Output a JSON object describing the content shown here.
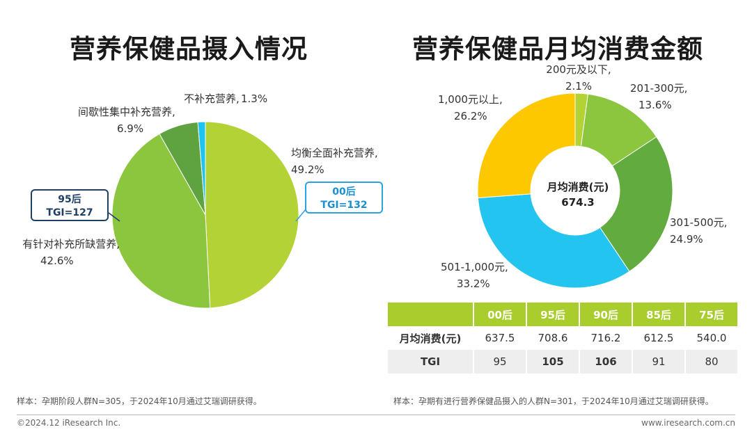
{
  "left": {
    "title": "营养保健品摄入情况",
    "labels": [
      {
        "name": "均衡全面补充营养,",
        "pct": "49.2%"
      },
      {
        "name": "有针对补充所缺营养,",
        "pct": "42.6%"
      },
      {
        "name": "间歇性集中补充营养,",
        "pct": "6.9%"
      },
      {
        "name": "不补充营养,",
        "pct": "1.3%"
      }
    ],
    "callout_95": {
      "line1": "95后",
      "line2": "TGI=127"
    },
    "callout_00": {
      "line1": "00后",
      "line2": "TGI=132"
    },
    "note": "样本：孕期阶段人群N=305，于2024年10月通过艾瑞调研获得。"
  },
  "right": {
    "title": "营养保健品月均消费金额",
    "center_label": "月均消费(元)",
    "center_value": "674.3",
    "labels": [
      {
        "name": "200元及以下,",
        "pct": "2.1%"
      },
      {
        "name": "201-300元,",
        "pct": "13.6%"
      },
      {
        "name": "301-500元,",
        "pct": "24.9%"
      },
      {
        "name": "501-1,000元,",
        "pct": "33.2%"
      },
      {
        "name": "1,000元以上,",
        "pct": "26.2%"
      }
    ],
    "table": {
      "headers": [
        "00后",
        "95后",
        "90后",
        "85后",
        "75后"
      ],
      "rows": [
        {
          "label": "月均消费(元)",
          "values": [
            "637.5",
            "708.6",
            "716.2",
            "612.5",
            "540.0"
          ]
        },
        {
          "label": "TGI",
          "values": [
            "95",
            "105",
            "106",
            "91",
            "80"
          ]
        }
      ]
    },
    "note": "样本：孕期有进行营养保健品摄入的人群N=301，于2024年10月通过艾瑞调研获得。"
  },
  "footer": {
    "left": "©2024.12 iResearch Inc.",
    "right": "www.iresearch.com.cn"
  },
  "chart_data": [
    {
      "type": "pie",
      "title": "营养保健品摄入情况",
      "categories": [
        "均衡全面补充营养",
        "有针对补充所缺营养",
        "间歇性集中补充营养",
        "不补充营养"
      ],
      "values": [
        49.2,
        42.6,
        6.9,
        1.3
      ],
      "colors": [
        "#b2d235",
        "#8cc63f",
        "#5ea33f",
        "#1fc3f0"
      ]
    },
    {
      "type": "pie",
      "title": "营养保健品月均消费金额",
      "categories": [
        "200元及以下",
        "201-300元",
        "301-500元",
        "501-1,000元",
        "1,000元以上"
      ],
      "values": [
        2.1,
        13.6,
        24.9,
        33.2,
        26.2
      ],
      "colors": [
        "#b2d235",
        "#8cc63f",
        "#62ab3f",
        "#23c4ef",
        "#fdc800"
      ]
    },
    {
      "type": "table",
      "columns": [
        "00后",
        "95后",
        "90后",
        "85后",
        "75后"
      ],
      "rows": [
        {
          "label": "月均消费(元)",
          "values": [
            637.5,
            708.6,
            716.2,
            612.5,
            540.0
          ]
        },
        {
          "label": "TGI",
          "values": [
            95,
            105,
            106,
            91,
            80
          ]
        }
      ]
    }
  ]
}
